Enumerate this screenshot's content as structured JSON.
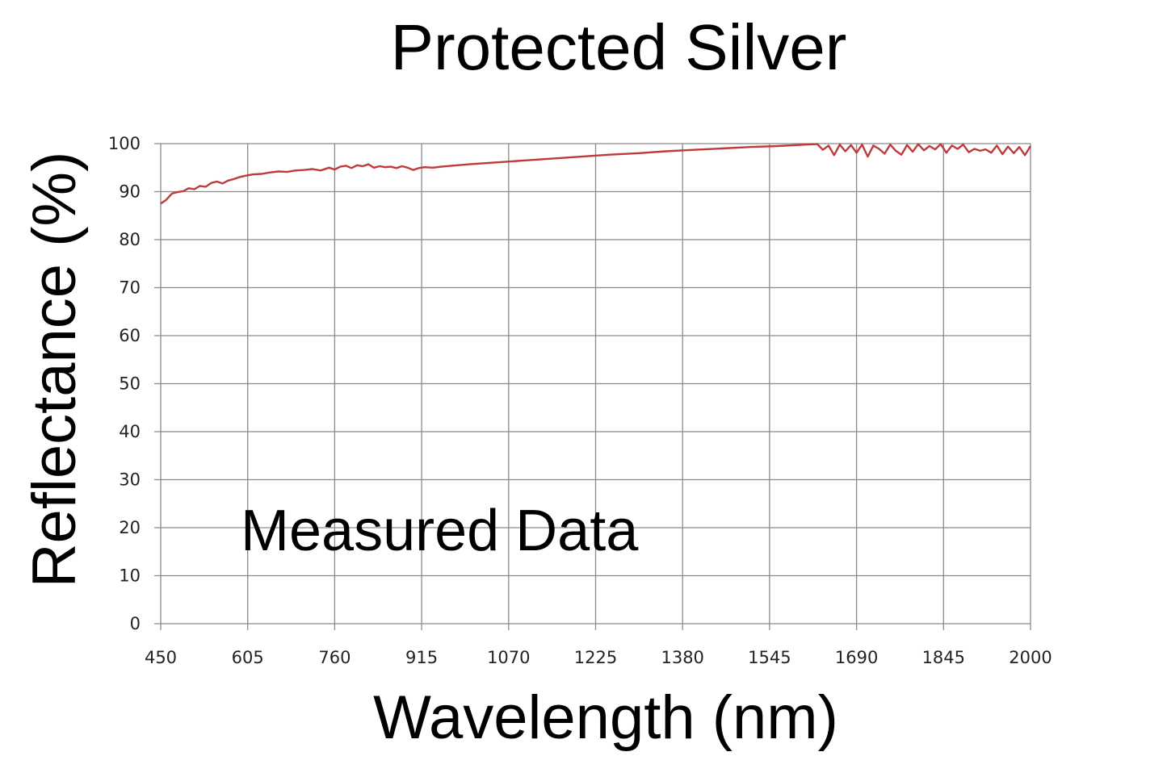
{
  "chart_data": {
    "type": "line",
    "title": "Protected Silver",
    "xlabel": "Wavelength (nm)",
    "ylabel": "Reflectance (%)",
    "annotation": "Measured Data",
    "xlim": [
      450,
      2000
    ],
    "ylim": [
      0,
      100
    ],
    "x_ticks": [
      "450",
      "605",
      "760",
      "915",
      "1070",
      "1225",
      "1380",
      "1545",
      "1690",
      "1845",
      "2000"
    ],
    "y_ticks": [
      "0",
      "10",
      "20",
      "30",
      "40",
      "50",
      "60",
      "70",
      "80",
      "90",
      "100"
    ],
    "grid": true,
    "series_color": "#c0393b",
    "grid_color": "#8a8a8a",
    "series": [
      {
        "x": [
          450,
          460,
          470,
          480,
          490,
          500,
          510,
          520,
          530,
          540,
          550,
          560,
          570,
          580,
          590,
          600,
          615,
          630,
          645,
          660,
          675,
          690,
          705,
          720,
          735,
          750,
          760,
          770,
          780,
          790,
          800,
          810,
          820,
          830,
          840,
          850,
          860,
          870,
          880,
          890,
          900,
          910,
          920,
          935,
          950,
          1000,
          1050,
          1100,
          1150,
          1200,
          1250,
          1300,
          1350,
          1400,
          1450,
          1500,
          1550,
          1600,
          1620,
          1630,
          1640,
          1650,
          1660,
          1670,
          1680,
          1690,
          1700,
          1710,
          1720,
          1730,
          1740,
          1750,
          1760,
          1770,
          1780,
          1790,
          1800,
          1810,
          1820,
          1830,
          1840,
          1850,
          1860,
          1870,
          1880,
          1890,
          1900,
          1910,
          1920,
          1930,
          1940,
          1950,
          1960,
          1970,
          1980,
          1990,
          2000
        ],
        "y": [
          87.5,
          88.3,
          89.6,
          89.9,
          90.1,
          90.7,
          90.5,
          91.2,
          91.0,
          91.8,
          92.1,
          91.7,
          92.3,
          92.6,
          93.0,
          93.3,
          93.6,
          93.7,
          94.0,
          94.2,
          94.1,
          94.4,
          94.5,
          94.7,
          94.4,
          95.0,
          94.6,
          95.2,
          95.4,
          94.9,
          95.5,
          95.3,
          95.7,
          95.0,
          95.3,
          95.1,
          95.2,
          94.9,
          95.3,
          95.0,
          94.5,
          94.9,
          95.1,
          95.0,
          95.2,
          95.7,
          96.1,
          96.5,
          96.9,
          97.3,
          97.7,
          98.0,
          98.4,
          98.7,
          99.0,
          99.3,
          99.5,
          99.8,
          99.9,
          98.7,
          99.6,
          97.6,
          99.8,
          98.4,
          99.7,
          98.1,
          99.8,
          97.3,
          99.6,
          98.9,
          97.9,
          99.8,
          98.5,
          97.7,
          99.7,
          98.3,
          99.9,
          98.6,
          99.5,
          98.8,
          99.9,
          98.1,
          99.6,
          98.9,
          99.8,
          98.2,
          98.9,
          98.5,
          98.8,
          98.1,
          99.6,
          97.8,
          99.4,
          98.0,
          99.3,
          97.6,
          99.5
        ]
      }
    ]
  }
}
